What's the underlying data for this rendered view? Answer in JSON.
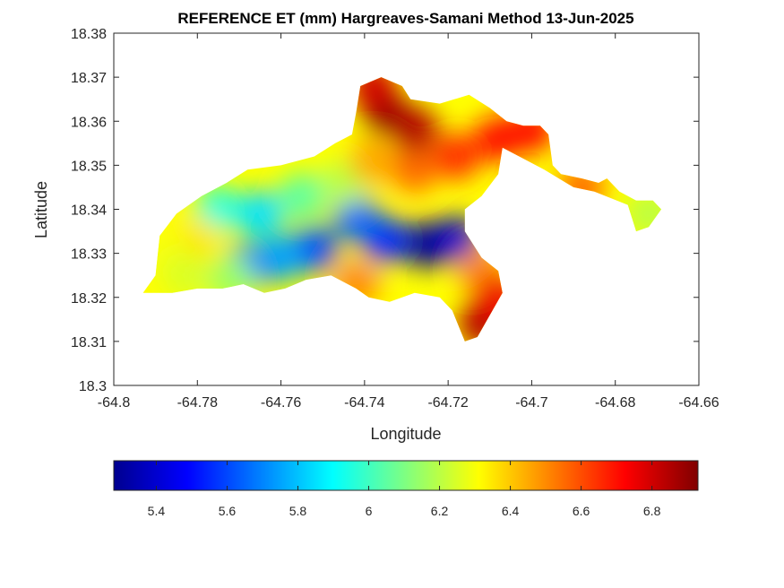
{
  "chart_data": {
    "type": "heatmap",
    "title": "REFERENCE ET (mm) Hargreaves-Samani Method  13-Jun-2025",
    "xlabel": "Longitude",
    "ylabel": "Latitude",
    "xlim": [
      -64.8,
      -64.66
    ],
    "ylim": [
      18.3,
      18.38
    ],
    "x_ticks": [
      "-64.8",
      "-64.78",
      "-64.76",
      "-64.74",
      "-64.72",
      "-64.7",
      "-64.68",
      "-64.66"
    ],
    "y_ticks": [
      "18.3",
      "18.31",
      "18.32",
      "18.33",
      "18.34",
      "18.35",
      "18.36",
      "18.37",
      "18.38"
    ],
    "x_tick_values": [
      -64.8,
      -64.78,
      -64.76,
      -64.74,
      -64.72,
      -64.7,
      -64.68,
      -64.66
    ],
    "y_tick_values": [
      18.3,
      18.31,
      18.32,
      18.33,
      18.34,
      18.35,
      18.36,
      18.37,
      18.38
    ],
    "colorbar": {
      "colormap": "jet",
      "range": [
        5.28,
        6.93
      ],
      "ticks": [
        "5.4",
        "5.6",
        "5.8",
        "6",
        "6.2",
        "6.4",
        "6.6",
        "6.8"
      ],
      "tick_values": [
        5.4,
        5.6,
        5.8,
        6.0,
        6.2,
        6.4,
        6.6,
        6.8
      ],
      "location": "south"
    },
    "land_outline": [
      [
        -64.793,
        18.321
      ],
      [
        -64.79,
        18.325
      ],
      [
        -64.789,
        18.334
      ],
      [
        -64.785,
        18.339
      ],
      [
        -64.779,
        18.343
      ],
      [
        -64.773,
        18.346
      ],
      [
        -64.768,
        18.349
      ],
      [
        -64.76,
        18.35
      ],
      [
        -64.752,
        18.352
      ],
      [
        -64.747,
        18.355
      ],
      [
        -64.743,
        18.357
      ],
      [
        -64.742,
        18.362
      ],
      [
        -64.741,
        18.368
      ],
      [
        -64.736,
        18.37
      ],
      [
        -64.731,
        18.368
      ],
      [
        -64.729,
        18.365
      ],
      [
        -64.722,
        18.364
      ],
      [
        -64.715,
        18.366
      ],
      [
        -64.71,
        18.363
      ],
      [
        -64.706,
        18.36
      ],
      [
        -64.702,
        18.359
      ],
      [
        -64.698,
        18.359
      ],
      [
        -64.696,
        18.357
      ],
      [
        -64.695,
        18.35
      ],
      [
        -64.693,
        18.348
      ],
      [
        -64.688,
        18.347
      ],
      [
        -64.684,
        18.346
      ],
      [
        -64.682,
        18.347
      ],
      [
        -64.679,
        18.344
      ],
      [
        -64.675,
        18.342
      ],
      [
        -64.671,
        18.342
      ],
      [
        -64.669,
        18.34
      ],
      [
        -64.672,
        18.336
      ],
      [
        -64.675,
        18.335
      ],
      [
        -64.677,
        18.341
      ],
      [
        -64.685,
        18.344
      ],
      [
        -64.69,
        18.345
      ],
      [
        -64.697,
        18.349
      ],
      [
        -64.703,
        18.352
      ],
      [
        -64.707,
        18.354
      ],
      [
        -64.708,
        18.348
      ],
      [
        -64.712,
        18.343
      ],
      [
        -64.716,
        18.34
      ],
      [
        -64.716,
        18.335
      ],
      [
        -64.712,
        18.329
      ],
      [
        -64.708,
        18.326
      ],
      [
        -64.707,
        18.321
      ],
      [
        -64.71,
        18.316
      ],
      [
        -64.713,
        18.311
      ],
      [
        -64.716,
        18.31
      ],
      [
        -64.719,
        18.317
      ],
      [
        -64.722,
        18.32
      ],
      [
        -64.728,
        18.321
      ],
      [
        -64.734,
        18.319
      ],
      [
        -64.739,
        18.32
      ],
      [
        -64.742,
        18.322
      ],
      [
        -64.748,
        18.325
      ],
      [
        -64.754,
        18.324
      ],
      [
        -64.759,
        18.322
      ],
      [
        -64.764,
        18.321
      ],
      [
        -64.769,
        18.323
      ],
      [
        -64.774,
        18.322
      ],
      [
        -64.78,
        18.322
      ],
      [
        -64.786,
        18.321
      ]
    ],
    "et_values": [
      {
        "lon": -64.725,
        "lat": 18.332,
        "et": 5.3
      },
      {
        "lon": -64.718,
        "lat": 18.333,
        "et": 5.4
      },
      {
        "lon": -64.735,
        "lat": 18.333,
        "et": 5.55
      },
      {
        "lon": -64.742,
        "lat": 18.338,
        "et": 5.65
      },
      {
        "lon": -64.752,
        "lat": 18.331,
        "et": 5.6
      },
      {
        "lon": -64.76,
        "lat": 18.329,
        "et": 5.75
      },
      {
        "lon": -64.768,
        "lat": 18.327,
        "et": 5.7
      },
      {
        "lon": -64.765,
        "lat": 18.339,
        "et": 5.85
      },
      {
        "lon": -64.775,
        "lat": 18.34,
        "et": 5.95
      },
      {
        "lon": -64.755,
        "lat": 18.343,
        "et": 6.05
      },
      {
        "lon": -64.745,
        "lat": 18.346,
        "et": 6.2
      },
      {
        "lon": -64.772,
        "lat": 18.324,
        "et": 6.15
      },
      {
        "lon": -64.78,
        "lat": 18.333,
        "et": 6.35
      },
      {
        "lon": -64.788,
        "lat": 18.33,
        "et": 6.3
      },
      {
        "lon": -64.783,
        "lat": 18.325,
        "et": 6.25
      },
      {
        "lon": -64.738,
        "lat": 18.351,
        "et": 6.45
      },
      {
        "lon": -64.728,
        "lat": 18.349,
        "et": 6.55
      },
      {
        "lon": -64.712,
        "lat": 18.326,
        "et": 6.5
      },
      {
        "lon": -64.742,
        "lat": 18.323,
        "et": 6.5
      },
      {
        "lon": -64.718,
        "lat": 18.352,
        "et": 6.65
      },
      {
        "lon": -64.708,
        "lat": 18.356,
        "et": 6.7
      },
      {
        "lon": -64.7,
        "lat": 18.358,
        "et": 6.7
      },
      {
        "lon": -64.712,
        "lat": 18.314,
        "et": 6.85
      },
      {
        "lon": -64.708,
        "lat": 18.32,
        "et": 6.75
      },
      {
        "lon": -64.735,
        "lat": 18.362,
        "et": 6.9
      },
      {
        "lon": -64.728,
        "lat": 18.358,
        "et": 6.85
      },
      {
        "lon": -64.738,
        "lat": 18.368,
        "et": 6.8
      },
      {
        "lon": -64.688,
        "lat": 18.345,
        "et": 6.55
      },
      {
        "lon": -64.672,
        "lat": 18.339,
        "et": 6.2
      }
    ]
  }
}
